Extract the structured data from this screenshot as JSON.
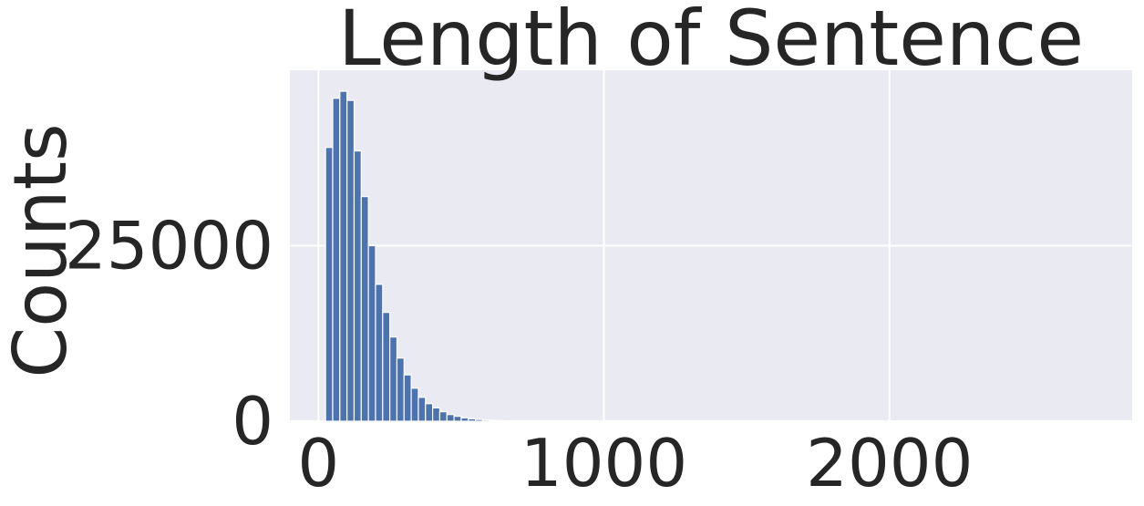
{
  "chart_data": {
    "type": "bar",
    "title": "Length of Sentence",
    "xlabel": "",
    "ylabel": "Counts",
    "xlim": [
      -100,
      2850
    ],
    "ylim": [
      0,
      50000
    ],
    "x_ticks": [
      0,
      1000,
      2000
    ],
    "y_ticks": [
      0,
      25000
    ],
    "x_tick_labels": [
      "0",
      "1000",
      "2000"
    ],
    "y_tick_labels": [
      "0",
      "25000"
    ],
    "grid": true,
    "bar_color": "#4c72b0",
    "background_color": "#eaeaf2",
    "bin_width": 25,
    "bin_starts": [
      25,
      50,
      75,
      100,
      125,
      150,
      175,
      200,
      225,
      250,
      275,
      300,
      325,
      350,
      375,
      400,
      425,
      450,
      475,
      500,
      525,
      550,
      575,
      600,
      625,
      650,
      675,
      700
    ],
    "counts": [
      39000,
      46000,
      47000,
      45700,
      38500,
      32000,
      25000,
      19500,
      15500,
      12000,
      9000,
      6600,
      4700,
      3400,
      2500,
      1900,
      1350,
      950,
      700,
      480,
      350,
      250,
      180,
      130,
      90,
      60,
      40,
      20
    ]
  }
}
